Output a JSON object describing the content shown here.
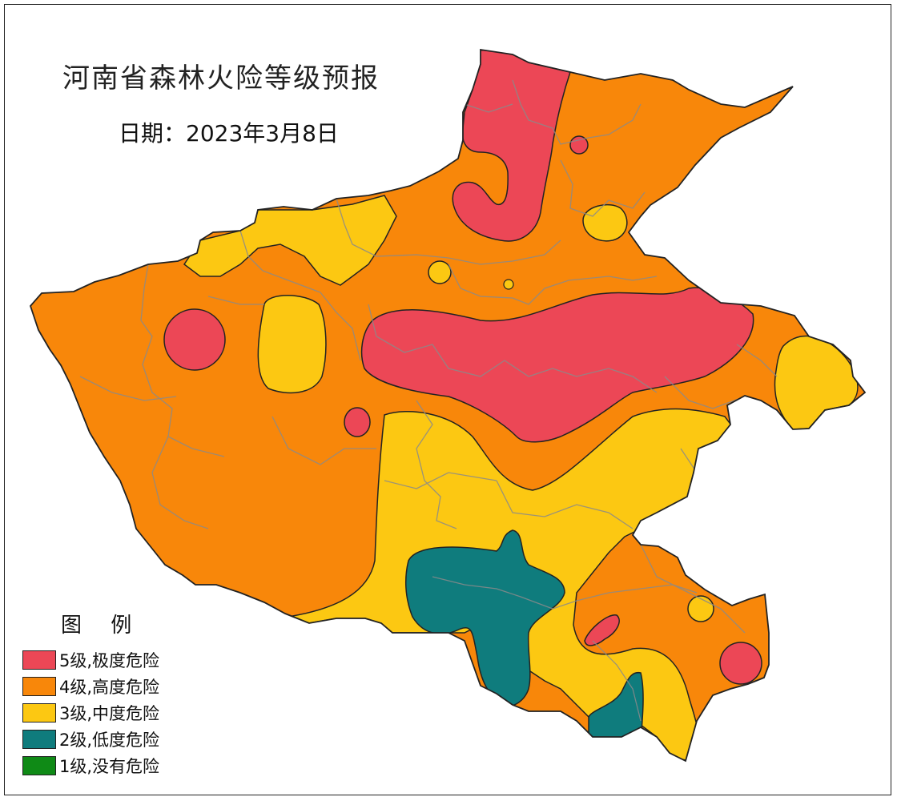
{
  "map": {
    "title": "河南省森林火险等级预报",
    "date": "日期：2023年3月8日"
  },
  "legend": {
    "title": "图 例",
    "items": [
      {
        "label": "5级,极度危险",
        "color": "#ec4756"
      },
      {
        "label": "4级,高度危险",
        "color": "#f8870a"
      },
      {
        "label": "3级,中度危险",
        "color": "#fcc812"
      },
      {
        "label": "2级,低度危险",
        "color": "#0f7c7d"
      },
      {
        "label": "1级,没有危险",
        "color": "#0f8a16"
      }
    ]
  }
}
